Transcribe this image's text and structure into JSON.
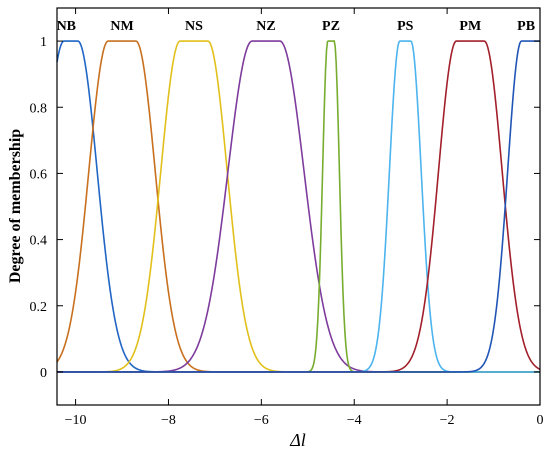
{
  "chart_data": {
    "type": "line",
    "title": "",
    "xlabel": "Δl",
    "ylabel": "Degree of membership",
    "xlim": [
      -10.4,
      0
    ],
    "ylim": [
      -0.1,
      1.1
    ],
    "xticks": [
      -10,
      -8,
      -6,
      -4,
      -2,
      0
    ],
    "xtick_labels": [
      "−10",
      "−8",
      "−6",
      "−4",
      "−2",
      "0"
    ],
    "yticks": [
      0,
      0.2,
      0.4,
      0.6,
      0.8,
      1
    ],
    "ytick_labels": [
      "0",
      "0.2",
      "0.4",
      "0.6",
      "0.8",
      "1"
    ],
    "grid": false,
    "legend": "none",
    "series": [
      {
        "name": "NB",
        "center": -10.1,
        "flat_halfwidth": 0.15,
        "width": 0.56,
        "color": "#2166c4",
        "label_x": -10.2
      },
      {
        "name": "NM",
        "center": -9.0,
        "flat_halfwidth": 0.3,
        "width": 0.56,
        "color": "#c8701e",
        "label_x": -9.0
      },
      {
        "name": "NS",
        "center": -7.45,
        "flat_halfwidth": 0.3,
        "width": 0.56,
        "color": "#e2c01b",
        "label_x": -7.45
      },
      {
        "name": "NZ",
        "center": -5.9,
        "flat_halfwidth": 0.3,
        "width": 0.7,
        "color": "#7e3c9c",
        "label_x": -5.9
      },
      {
        "name": "PZ",
        "center": -4.5,
        "flat_halfwidth": 0.07,
        "width": 0.15,
        "color": "#77ad2f",
        "label_x": -4.5
      },
      {
        "name": "PS",
        "center": -2.9,
        "flat_halfwidth": 0.12,
        "width": 0.3,
        "color": "#4cb4ee",
        "label_x": -2.9
      },
      {
        "name": "PM",
        "center": -1.5,
        "flat_halfwidth": 0.3,
        "width": 0.52,
        "color": "#a2202b",
        "label_x": -1.5
      },
      {
        "name": "PB",
        "center": -0.15,
        "flat_halfwidth": 0.25,
        "width": 0.4,
        "color": "#2155b5",
        "label_x": -0.3
      }
    ]
  }
}
